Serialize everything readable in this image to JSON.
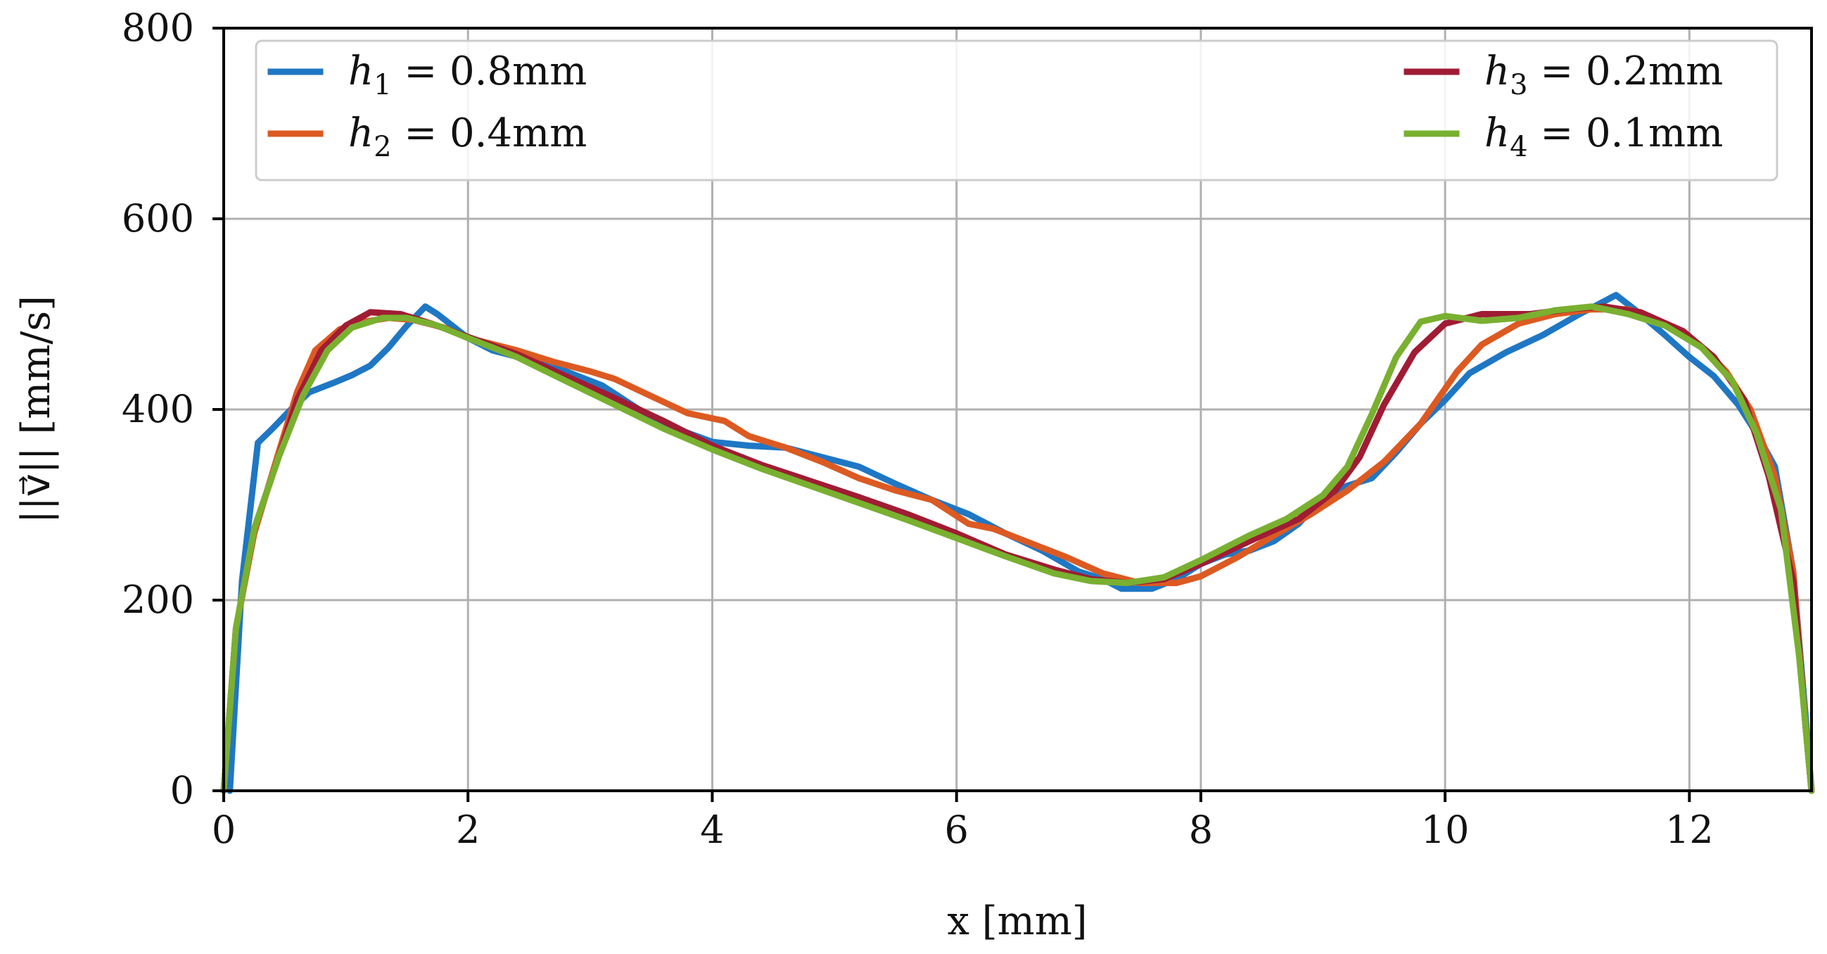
{
  "chart_data": {
    "type": "line",
    "title": "",
    "xlabel": "x [mm]",
    "ylabel": "||v⃗|| [mm/s]",
    "xlim": [
      0,
      13
    ],
    "ylim": [
      0,
      800
    ],
    "xticks": [
      0,
      2,
      4,
      6,
      8,
      10,
      12
    ],
    "yticks": [
      0,
      200,
      400,
      600,
      800
    ],
    "xtick_labels": [
      "0",
      "2",
      "4",
      "6",
      "8",
      "10",
      "12"
    ],
    "ytick_labels": [
      "0",
      "200",
      "400",
      "600",
      "800"
    ],
    "grid": true,
    "legend_position": "top (two columns: left and right)",
    "series": [
      {
        "name": "h1 = 0.8mm",
        "legend": {
          "symbol": "h",
          "sub": "1",
          "text": " = 0.8mm"
        },
        "color": "#1f77c4",
        "points": [
          [
            0.05,
            0
          ],
          [
            0.15,
            220
          ],
          [
            0.28,
            365
          ],
          [
            0.4,
            380
          ],
          [
            0.55,
            400
          ],
          [
            0.7,
            418
          ],
          [
            0.9,
            428
          ],
          [
            1.05,
            436
          ],
          [
            1.2,
            446
          ],
          [
            1.35,
            465
          ],
          [
            1.5,
            488
          ],
          [
            1.65,
            508
          ],
          [
            1.75,
            500
          ],
          [
            2.0,
            475
          ],
          [
            2.2,
            462
          ],
          [
            2.5,
            452
          ],
          [
            2.8,
            440
          ],
          [
            3.1,
            425
          ],
          [
            3.4,
            400
          ],
          [
            3.7,
            380
          ],
          [
            4.0,
            366
          ],
          [
            4.3,
            362
          ],
          [
            4.6,
            360
          ],
          [
            4.9,
            350
          ],
          [
            5.2,
            340
          ],
          [
            5.5,
            322
          ],
          [
            5.8,
            305
          ],
          [
            6.1,
            290
          ],
          [
            6.4,
            270
          ],
          [
            6.7,
            252
          ],
          [
            7.0,
            230
          ],
          [
            7.2,
            222
          ],
          [
            7.35,
            212
          ],
          [
            7.6,
            212
          ],
          [
            7.8,
            222
          ],
          [
            8.0,
            238
          ],
          [
            8.2,
            248
          ],
          [
            8.4,
            252
          ],
          [
            8.6,
            262
          ],
          [
            8.8,
            280
          ],
          [
            9.0,
            308
          ],
          [
            9.2,
            320
          ],
          [
            9.4,
            328
          ],
          [
            9.6,
            355
          ],
          [
            9.8,
            385
          ],
          [
            10.0,
            410
          ],
          [
            10.2,
            438
          ],
          [
            10.5,
            460
          ],
          [
            10.8,
            478
          ],
          [
            11.1,
            500
          ],
          [
            11.25,
            510
          ],
          [
            11.4,
            520
          ],
          [
            11.55,
            505
          ],
          [
            11.8,
            478
          ],
          [
            12.0,
            455
          ],
          [
            12.2,
            435
          ],
          [
            12.4,
            405
          ],
          [
            12.55,
            375
          ],
          [
            12.7,
            340
          ],
          [
            12.85,
            230
          ],
          [
            12.95,
            80
          ],
          [
            13.0,
            0
          ]
        ]
      },
      {
        "name": "h2 = 0.4mm",
        "legend": {
          "symbol": "h",
          "sub": "2",
          "text": " = 0.4mm"
        },
        "color": "#dc5a22",
        "points": [
          [
            0.0,
            0
          ],
          [
            0.1,
            170
          ],
          [
            0.25,
            270
          ],
          [
            0.45,
            355
          ],
          [
            0.6,
            418
          ],
          [
            0.75,
            462
          ],
          [
            0.95,
            484
          ],
          [
            1.15,
            492
          ],
          [
            1.35,
            496
          ],
          [
            1.55,
            494
          ],
          [
            1.8,
            486
          ],
          [
            2.0,
            475
          ],
          [
            2.4,
            462
          ],
          [
            2.7,
            450
          ],
          [
            3.0,
            440
          ],
          [
            3.2,
            432
          ],
          [
            3.4,
            420
          ],
          [
            3.6,
            408
          ],
          [
            3.8,
            396
          ],
          [
            4.1,
            388
          ],
          [
            4.3,
            372
          ],
          [
            4.6,
            360
          ],
          [
            4.9,
            345
          ],
          [
            5.2,
            328
          ],
          [
            5.5,
            315
          ],
          [
            5.8,
            305
          ],
          [
            6.1,
            280
          ],
          [
            6.3,
            275
          ],
          [
            6.6,
            260
          ],
          [
            6.9,
            245
          ],
          [
            7.2,
            228
          ],
          [
            7.5,
            218
          ],
          [
            7.8,
            218
          ],
          [
            8.0,
            225
          ],
          [
            8.3,
            245
          ],
          [
            8.6,
            268
          ],
          [
            8.9,
            290
          ],
          [
            9.2,
            315
          ],
          [
            9.5,
            345
          ],
          [
            9.8,
            385
          ],
          [
            10.1,
            440
          ],
          [
            10.3,
            468
          ],
          [
            10.6,
            490
          ],
          [
            10.9,
            500
          ],
          [
            11.2,
            505
          ],
          [
            11.5,
            505
          ],
          [
            11.8,
            490
          ],
          [
            12.1,
            465
          ],
          [
            12.3,
            440
          ],
          [
            12.5,
            400
          ],
          [
            12.7,
            330
          ],
          [
            12.85,
            230
          ],
          [
            12.95,
            70
          ],
          [
            13.0,
            0
          ]
        ]
      },
      {
        "name": "h3 = 0.2mm",
        "legend": {
          "symbol": "h",
          "sub": "3",
          "text": " = 0.2mm"
        },
        "color": "#a01c34",
        "points": [
          [
            0.0,
            0
          ],
          [
            0.1,
            170
          ],
          [
            0.25,
            275
          ],
          [
            0.45,
            350
          ],
          [
            0.6,
            410
          ],
          [
            0.8,
            462
          ],
          [
            1.0,
            488
          ],
          [
            1.2,
            502
          ],
          [
            1.45,
            500
          ],
          [
            1.7,
            490
          ],
          [
            2.0,
            476
          ],
          [
            2.4,
            458
          ],
          [
            2.8,
            435
          ],
          [
            3.2,
            412
          ],
          [
            3.6,
            388
          ],
          [
            4.0,
            362
          ],
          [
            4.4,
            342
          ],
          [
            4.8,
            325
          ],
          [
            5.2,
            308
          ],
          [
            5.6,
            290
          ],
          [
            6.0,
            270
          ],
          [
            6.4,
            248
          ],
          [
            6.8,
            232
          ],
          [
            7.1,
            222
          ],
          [
            7.4,
            218
          ],
          [
            7.7,
            222
          ],
          [
            8.0,
            238
          ],
          [
            8.4,
            262
          ],
          [
            8.8,
            285
          ],
          [
            9.1,
            315
          ],
          [
            9.3,
            350
          ],
          [
            9.5,
            405
          ],
          [
            9.75,
            460
          ],
          [
            10.0,
            490
          ],
          [
            10.3,
            500
          ],
          [
            10.7,
            500
          ],
          [
            11.0,
            505
          ],
          [
            11.3,
            508
          ],
          [
            11.6,
            502
          ],
          [
            11.95,
            482
          ],
          [
            12.2,
            455
          ],
          [
            12.45,
            410
          ],
          [
            12.65,
            330
          ],
          [
            12.85,
            220
          ],
          [
            12.95,
            70
          ],
          [
            13.0,
            0
          ]
        ]
      },
      {
        "name": "h4 = 0.1mm",
        "legend": {
          "symbol": "h",
          "sub": "4",
          "text": " = 0.1mm"
        },
        "color": "#79b030",
        "points": [
          [
            0.0,
            0
          ],
          [
            0.1,
            170
          ],
          [
            0.25,
            275
          ],
          [
            0.45,
            350
          ],
          [
            0.65,
            415
          ],
          [
            0.85,
            462
          ],
          [
            1.05,
            486
          ],
          [
            1.3,
            496
          ],
          [
            1.5,
            496
          ],
          [
            1.75,
            488
          ],
          [
            2.0,
            475
          ],
          [
            2.4,
            455
          ],
          [
            2.8,
            430
          ],
          [
            3.2,
            405
          ],
          [
            3.6,
            380
          ],
          [
            4.0,
            358
          ],
          [
            4.4,
            338
          ],
          [
            4.8,
            320
          ],
          [
            5.2,
            302
          ],
          [
            5.6,
            284
          ],
          [
            6.0,
            265
          ],
          [
            6.4,
            246
          ],
          [
            6.8,
            228
          ],
          [
            7.1,
            220
          ],
          [
            7.4,
            218
          ],
          [
            7.7,
            224
          ],
          [
            8.0,
            242
          ],
          [
            8.4,
            268
          ],
          [
            8.7,
            285
          ],
          [
            9.0,
            310
          ],
          [
            9.2,
            340
          ],
          [
            9.4,
            395
          ],
          [
            9.6,
            455
          ],
          [
            9.8,
            492
          ],
          [
            10.0,
            498
          ],
          [
            10.3,
            493
          ],
          [
            10.6,
            496
          ],
          [
            10.9,
            504
          ],
          [
            11.2,
            508
          ],
          [
            11.5,
            500
          ],
          [
            11.8,
            488
          ],
          [
            12.1,
            465
          ],
          [
            12.35,
            430
          ],
          [
            12.55,
            375
          ],
          [
            12.75,
            295
          ],
          [
            12.9,
            140
          ],
          [
            13.0,
            0
          ]
        ]
      }
    ]
  }
}
